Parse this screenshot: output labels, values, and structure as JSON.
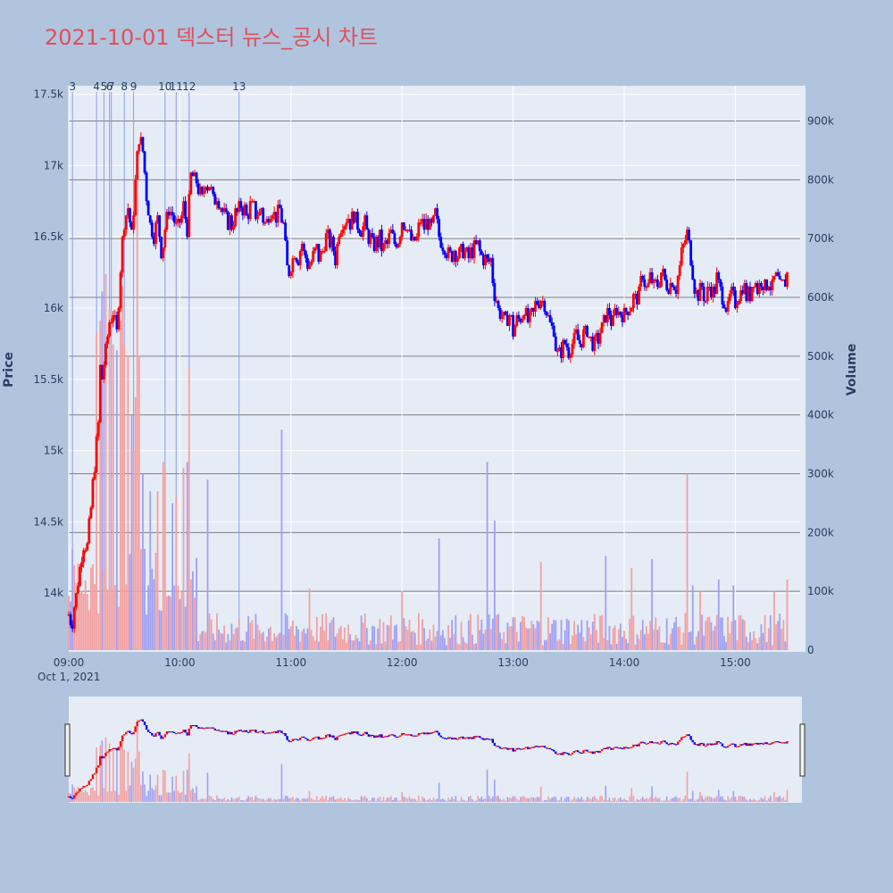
{
  "chart_data": {
    "type": "candlestick",
    "title": "2021-10-01 덱스터 뉴스_공시 차트",
    "ylabel_left": "Price",
    "ylabel_right": "Volume",
    "date_label": "Oct 1, 2021",
    "ylim_price": [
      13600,
      17560
    ],
    "ylim_volume": [
      0,
      960000
    ],
    "xlim_minutes": [
      0,
      395
    ],
    "x_ticks": [
      {
        "label": "09:00",
        "m": 0
      },
      {
        "label": "10:00",
        "m": 60
      },
      {
        "label": "11:00",
        "m": 120
      },
      {
        "label": "12:00",
        "m": 180
      },
      {
        "label": "13:00",
        "m": 240
      },
      {
        "label": "14:00",
        "m": 300
      },
      {
        "label": "15:00",
        "m": 360
      }
    ],
    "price_ticks": [
      {
        "label": "14k",
        "v": 14000
      },
      {
        "label": "14.5k",
        "v": 14500
      },
      {
        "label": "15k",
        "v": 15000
      },
      {
        "label": "15.5k",
        "v": 15500
      },
      {
        "label": "16k",
        "v": 16000
      },
      {
        "label": "16.5k",
        "v": 16500
      },
      {
        "label": "17k",
        "v": 17000
      },
      {
        "label": "17.5k",
        "v": 17500
      }
    ],
    "volume_ticks": [
      {
        "label": "0",
        "v": 0
      },
      {
        "label": "100k",
        "v": 100000
      },
      {
        "label": "200k",
        "v": 200000
      },
      {
        "label": "300k",
        "v": 300000
      },
      {
        "label": "400k",
        "v": 400000
      },
      {
        "label": "500k",
        "v": 500000
      },
      {
        "label": "600k",
        "v": 600000
      },
      {
        "label": "700k",
        "v": 700000
      },
      {
        "label": "800k",
        "v": 800000
      },
      {
        "label": "900k",
        "v": 900000
      }
    ],
    "price_path": [
      [
        0,
        13850
      ],
      [
        2,
        13800
      ],
      [
        5,
        14100
      ],
      [
        8,
        14350
      ],
      [
        10,
        14350
      ],
      [
        12,
        14600
      ],
      [
        14,
        14900
      ],
      [
        16,
        15200
      ],
      [
        17,
        15600
      ],
      [
        18,
        15500
      ],
      [
        20,
        15700
      ],
      [
        22,
        15900
      ],
      [
        24,
        16000
      ],
      [
        26,
        15800
      ],
      [
        28,
        16300
      ],
      [
        30,
        16600
      ],
      [
        32,
        16700
      ],
      [
        34,
        16500
      ],
      [
        36,
        16900
      ],
      [
        38,
        17200
      ],
      [
        40,
        17100
      ],
      [
        42,
        16800
      ],
      [
        44,
        16600
      ],
      [
        46,
        16500
      ],
      [
        48,
        16600
      ],
      [
        50,
        16400
      ],
      [
        52,
        16550
      ],
      [
        54,
        16700
      ],
      [
        56,
        16650
      ],
      [
        58,
        16550
      ],
      [
        60,
        16600
      ],
      [
        62,
        16700
      ],
      [
        64,
        16550
      ],
      [
        66,
        16950
      ],
      [
        68,
        16900
      ],
      [
        70,
        16850
      ],
      [
        72,
        16750
      ],
      [
        74,
        16900
      ],
      [
        76,
        16850
      ],
      [
        78,
        16750
      ],
      [
        80,
        16800
      ],
      [
        82,
        16700
      ],
      [
        84,
        16650
      ],
      [
        86,
        16600
      ],
      [
        88,
        16600
      ],
      [
        90,
        16650
      ],
      [
        92,
        16700
      ],
      [
        94,
        16700
      ],
      [
        96,
        16650
      ],
      [
        98,
        16700
      ],
      [
        100,
        16700
      ],
      [
        102,
        16650
      ],
      [
        104,
        16700
      ],
      [
        106,
        16600
      ],
      [
        108,
        16650
      ],
      [
        110,
        16700
      ],
      [
        112,
        16650
      ],
      [
        114,
        16700
      ],
      [
        116,
        16600
      ],
      [
        118,
        16250
      ],
      [
        120,
        16300
      ],
      [
        122,
        16400
      ],
      [
        124,
        16350
      ],
      [
        126,
        16450
      ],
      [
        128,
        16350
      ],
      [
        130,
        16300
      ],
      [
        132,
        16350
      ],
      [
        134,
        16400
      ],
      [
        136,
        16350
      ],
      [
        138,
        16450
      ],
      [
        140,
        16500
      ],
      [
        142,
        16450
      ],
      [
        144,
        16350
      ],
      [
        146,
        16550
      ],
      [
        148,
        16600
      ],
      [
        150,
        16650
      ],
      [
        152,
        16600
      ],
      [
        154,
        16650
      ],
      [
        156,
        16600
      ],
      [
        158,
        16550
      ],
      [
        160,
        16600
      ],
      [
        162,
        16500
      ],
      [
        164,
        16450
      ],
      [
        166,
        16450
      ],
      [
        168,
        16500
      ],
      [
        170,
        16400
      ],
      [
        172,
        16450
      ],
      [
        174,
        16500
      ],
      [
        176,
        16450
      ],
      [
        178,
        16500
      ],
      [
        180,
        16600
      ],
      [
        182,
        16600
      ],
      [
        184,
        16500
      ],
      [
        186,
        16450
      ],
      [
        188,
        16500
      ],
      [
        190,
        16600
      ],
      [
        192,
        16550
      ],
      [
        194,
        16600
      ],
      [
        196,
        16550
      ],
      [
        198,
        16650
      ],
      [
        200,
        16500
      ],
      [
        202,
        16450
      ],
      [
        204,
        16400
      ],
      [
        206,
        16350
      ],
      [
        208,
        16400
      ],
      [
        210,
        16350
      ],
      [
        212,
        16400
      ],
      [
        214,
        16400
      ],
      [
        216,
        16350
      ],
      [
        218,
        16400
      ],
      [
        220,
        16450
      ],
      [
        222,
        16400
      ],
      [
        224,
        16350
      ],
      [
        226,
        16300
      ],
      [
        228,
        16350
      ],
      [
        230,
        16100
      ],
      [
        232,
        16000
      ],
      [
        234,
        15950
      ],
      [
        236,
        15900
      ],
      [
        238,
        15950
      ],
      [
        240,
        15850
      ],
      [
        242,
        15900
      ],
      [
        244,
        15950
      ],
      [
        246,
        16000
      ],
      [
        248,
        15900
      ],
      [
        250,
        15950
      ],
      [
        252,
        16000
      ],
      [
        254,
        16050
      ],
      [
        256,
        16050
      ],
      [
        258,
        16000
      ],
      [
        260,
        15900
      ],
      [
        262,
        15850
      ],
      [
        264,
        15650
      ],
      [
        266,
        15700
      ],
      [
        268,
        15750
      ],
      [
        270,
        15700
      ],
      [
        272,
        15750
      ],
      [
        274,
        15800
      ],
      [
        276,
        15750
      ],
      [
        278,
        15800
      ],
      [
        280,
        15850
      ],
      [
        282,
        15750
      ],
      [
        284,
        15750
      ],
      [
        286,
        15800
      ],
      [
        288,
        15850
      ],
      [
        290,
        15950
      ],
      [
        292,
        15950
      ],
      [
        294,
        15900
      ],
      [
        296,
        16000
      ],
      [
        298,
        15950
      ],
      [
        300,
        15950
      ],
      [
        302,
        16000
      ],
      [
        304,
        16050
      ],
      [
        306,
        16050
      ],
      [
        308,
        16100
      ],
      [
        310,
        16250
      ],
      [
        312,
        16150
      ],
      [
        314,
        16200
      ],
      [
        316,
        16150
      ],
      [
        318,
        16150
      ],
      [
        320,
        16250
      ],
      [
        322,
        16200
      ],
      [
        324,
        16150
      ],
      [
        326,
        16200
      ],
      [
        328,
        16150
      ],
      [
        330,
        16300
      ],
      [
        332,
        16450
      ],
      [
        334,
        16500
      ],
      [
        336,
        16350
      ],
      [
        338,
        16150
      ],
      [
        340,
        16100
      ],
      [
        342,
        16150
      ],
      [
        344,
        16050
      ],
      [
        346,
        16150
      ],
      [
        348,
        16100
      ],
      [
        350,
        16200
      ],
      [
        352,
        16100
      ],
      [
        354,
        16050
      ],
      [
        356,
        16000
      ],
      [
        358,
        16100
      ],
      [
        360,
        16050
      ],
      [
        362,
        16100
      ],
      [
        364,
        16150
      ],
      [
        366,
        16100
      ],
      [
        368,
        16100
      ],
      [
        370,
        16200
      ],
      [
        372,
        16150
      ],
      [
        374,
        16200
      ],
      [
        376,
        16150
      ],
      [
        378,
        16200
      ],
      [
        380,
        16150
      ],
      [
        382,
        16200
      ],
      [
        384,
        16150
      ],
      [
        386,
        16150
      ],
      [
        388,
        16250
      ],
      [
        389,
        16300
      ]
    ],
    "volume_spikes": [
      {
        "m": 15,
        "v": 540000
      },
      {
        "m": 17,
        "v": 560000
      },
      {
        "m": 18,
        "v": 610000
      },
      {
        "m": 20,
        "v": 640000
      },
      {
        "m": 22,
        "v": 580000
      },
      {
        "m": 24,
        "v": 520000
      },
      {
        "m": 26,
        "v": 510000
      },
      {
        "m": 28,
        "v": 560000
      },
      {
        "m": 29,
        "v": 620000
      },
      {
        "m": 30,
        "v": 520000
      },
      {
        "m": 32,
        "v": 500000
      },
      {
        "m": 34,
        "v": 400000
      },
      {
        "m": 35,
        "v": 340000
      },
      {
        "m": 36,
        "v": 430000
      },
      {
        "m": 37,
        "v": 820000
      },
      {
        "m": 38,
        "v": 500000
      },
      {
        "m": 40,
        "v": 300000
      },
      {
        "m": 44,
        "v": 270000
      },
      {
        "m": 48,
        "v": 270000
      },
      {
        "m": 51,
        "v": 320000
      },
      {
        "m": 52,
        "v": 310000
      },
      {
        "m": 56,
        "v": 250000
      },
      {
        "m": 58,
        "v": 260000
      },
      {
        "m": 62,
        "v": 310000
      },
      {
        "m": 64,
        "v": 320000
      },
      {
        "m": 65,
        "v": 480000
      },
      {
        "m": 75,
        "v": 290000
      },
      {
        "m": 115,
        "v": 375000
      },
      {
        "m": 130,
        "v": 105000
      },
      {
        "m": 180,
        "v": 100000
      },
      {
        "m": 200,
        "v": 190000
      },
      {
        "m": 226,
        "v": 320000
      },
      {
        "m": 230,
        "v": 220000
      },
      {
        "m": 255,
        "v": 150000
      },
      {
        "m": 290,
        "v": 160000
      },
      {
        "m": 304,
        "v": 140000
      },
      {
        "m": 315,
        "v": 155000
      },
      {
        "m": 334,
        "v": 300000
      },
      {
        "m": 337,
        "v": 110000
      },
      {
        "m": 341,
        "v": 100000
      },
      {
        "m": 351,
        "v": 120000
      },
      {
        "m": 359,
        "v": 110000
      },
      {
        "m": 381,
        "v": 100000
      },
      {
        "m": 388,
        "v": 120000
      },
      {
        "m": 389,
        "v": 160000
      }
    ],
    "news_markers": [
      {
        "label": "3",
        "m": 2
      },
      {
        "label": "4",
        "m": 15
      },
      {
        "label": "5",
        "m": 19
      },
      {
        "label": "6",
        "m": 22
      },
      {
        "label": "7",
        "m": 23
      },
      {
        "label": "8",
        "m": 30
      },
      {
        "label": "9",
        "m": 35
      },
      {
        "label": "10",
        "m": 52
      },
      {
        "label": "11",
        "m": 58
      },
      {
        "label": "12",
        "m": 65
      },
      {
        "label": "13",
        "m": 92
      }
    ],
    "colors": {
      "up": "#ff0000",
      "down": "#0000ff",
      "up_volume": "#f4a0a0",
      "down_volume": "#a0a0f4",
      "background": "#b0c4de",
      "plot_background": "#e5ecf6",
      "title": "#e0505a",
      "text": "#2a3f5f"
    }
  }
}
